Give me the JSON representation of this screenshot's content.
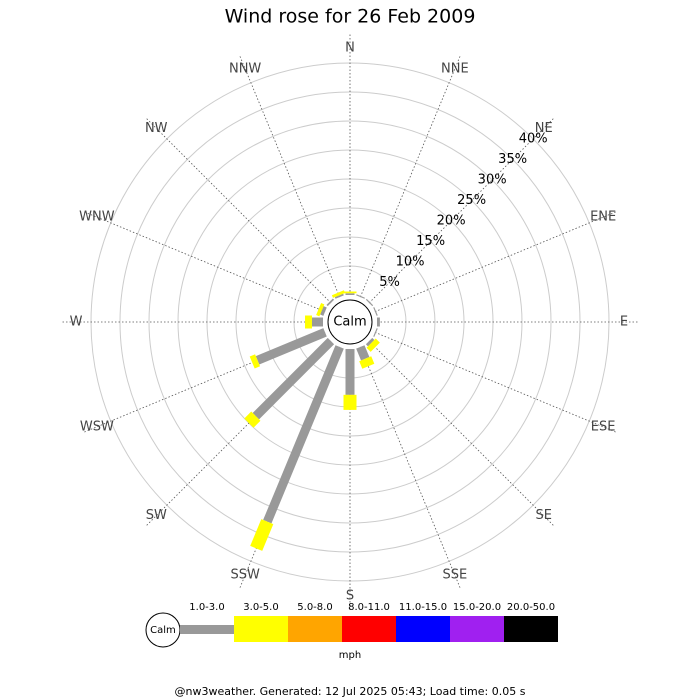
{
  "chart_data": {
    "type": "windrose",
    "title": "Wind rose for 26 Feb 2009",
    "categories": [
      "N",
      "NNE",
      "NE",
      "ENE",
      "E",
      "ESE",
      "SE",
      "SSE",
      "S",
      "SSW",
      "SW",
      "WSW",
      "W",
      "WNW",
      "NW",
      "NNW"
    ],
    "center_label": "Calm",
    "rlim": [
      0,
      40
    ],
    "rticks": [
      {
        "value": 5,
        "label": "5%"
      },
      {
        "value": 10,
        "label": "10%"
      },
      {
        "value": 15,
        "label": "15%"
      },
      {
        "value": 20,
        "label": "20%"
      },
      {
        "value": 25,
        "label": "25%"
      },
      {
        "value": 30,
        "label": "30%"
      },
      {
        "value": 35,
        "label": "35%"
      },
      {
        "value": 40,
        "label": "40%"
      }
    ],
    "series": [
      {
        "name": "1.0-3.0",
        "color": "#999999",
        "values": [
          0.3,
          0.2,
          0.2,
          0.2,
          0.5,
          0.2,
          0.5,
          2.2,
          7.9,
          32.6,
          18.3,
          12.6,
          1.9,
          0.6,
          0.3,
          0.3
        ]
      },
      {
        "name": "3.0-5.0",
        "color": "#ffff00",
        "values": [
          0.3,
          0,
          0,
          0,
          0,
          0,
          1,
          1.4,
          2.6,
          5,
          1.7,
          1,
          1.2,
          0.6,
          0,
          0.5
        ]
      },
      {
        "name": "5.0-8.0",
        "color": "#ffa500",
        "values": [
          0,
          0,
          0,
          0,
          0,
          0,
          0,
          0,
          0,
          0,
          0,
          0,
          0,
          0,
          0,
          0
        ]
      },
      {
        "name": "8.0-11.0",
        "color": "#ff0000",
        "values": [
          0,
          0,
          0,
          0,
          0,
          0,
          0,
          0,
          0,
          0,
          0,
          0,
          0,
          0,
          0,
          0
        ]
      },
      {
        "name": "11.0-15.0",
        "color": "#0000ff",
        "values": [
          0,
          0,
          0,
          0,
          0,
          0,
          0,
          0,
          0,
          0,
          0,
          0,
          0,
          0,
          0,
          0
        ]
      },
      {
        "name": "15.0-20.0",
        "color": "#a020f0",
        "values": [
          0,
          0,
          0,
          0,
          0,
          0,
          0,
          0,
          0,
          0,
          0,
          0,
          0,
          0,
          0,
          0
        ]
      },
      {
        "name": "20.0-50.0",
        "color": "#000000",
        "values": [
          0,
          0,
          0,
          0,
          0,
          0,
          0,
          0,
          0,
          0,
          0,
          0,
          0,
          0,
          0,
          0
        ]
      }
    ],
    "legend_title": "mph",
    "footer": "@nw3weather. Generated: 12 Jul 2025 05:43; Load time: 0.05 s"
  }
}
